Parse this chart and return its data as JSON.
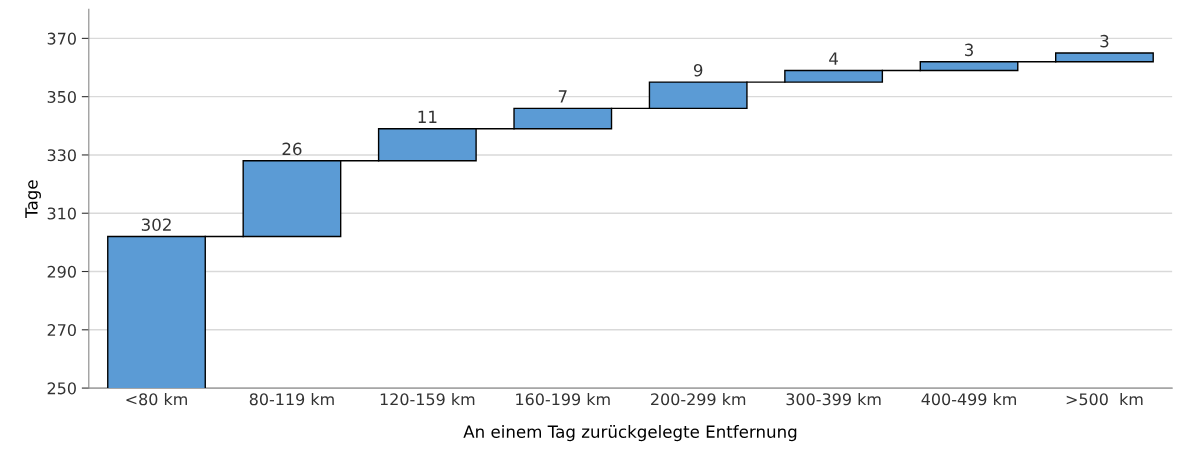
{
  "chart_data": {
    "type": "bar",
    "xlabel": "An einem Tag zurückgelegte Entfernung",
    "ylabel": "Tage",
    "categories": [
      "<80 km",
      "80-119 km",
      "120-159 km",
      "160-199 km",
      "200-299 km",
      "300-399 km",
      "400-499 km",
      ">500  km"
    ],
    "values": [
      302,
      26,
      11,
      7,
      9,
      4,
      3,
      3
    ],
    "base": [
      0,
      302,
      328,
      339,
      346,
      355,
      359,
      362
    ],
    "color": "#5b9bd5",
    "data_labels": true,
    "ylim": [
      250,
      380
    ],
    "yticks": [
      250,
      270,
      290,
      310,
      330,
      350,
      370
    ],
    "grid": "y"
  }
}
